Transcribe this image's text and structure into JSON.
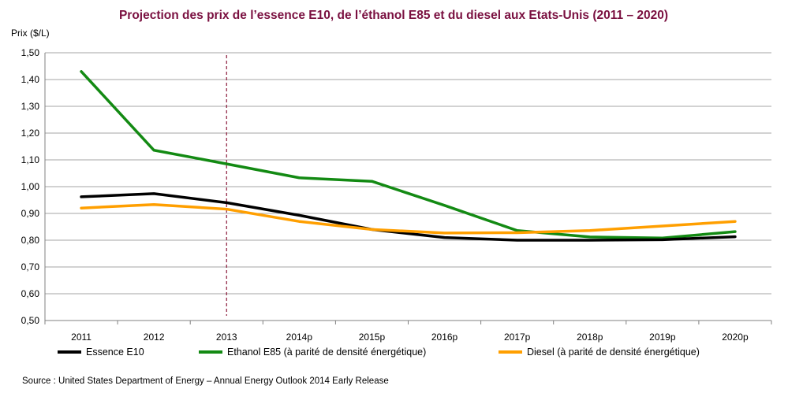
{
  "colors": {
    "title": "#7a1040",
    "grid": "#a6a6a6",
    "marker_line": "#8b1a3a"
  },
  "chart_data": {
    "type": "line",
    "title": "Projection des prix de l’essence E10, de l’éthanol E85 et du diesel aux Etats-Unis (2011 – 2020)",
    "ylabel": "Prix ($/L)",
    "xlabel": "",
    "ylim": [
      0.5,
      1.5
    ],
    "yticks": [
      0.5,
      0.6,
      0.7,
      0.8,
      0.9,
      1.0,
      1.1,
      1.2,
      1.3,
      1.4,
      1.5
    ],
    "ytick_labels": [
      "0,50",
      "0,60",
      "0,70",
      "0,80",
      "0,90",
      "1,00",
      "1,10",
      "1,20",
      "1,30",
      "1,40",
      "1,50"
    ],
    "categories": [
      "2011",
      "2012",
      "2013",
      "2014p",
      "2015p",
      "2016p",
      "2017p",
      "2018p",
      "2019p",
      "2020p"
    ],
    "grid": true,
    "legend_position": "bottom",
    "vertical_marker": {
      "category": "2013",
      "style": "dashed"
    },
    "series": [
      {
        "name": "Essence E10",
        "color": "#000000",
        "values": [
          0.962,
          0.974,
          0.94,
          0.893,
          0.84,
          0.81,
          0.8,
          0.8,
          0.802,
          0.813
        ]
      },
      {
        "name": "Ethanol E85 (à parité de densité énergétique)",
        "color": "#138a13",
        "values": [
          1.43,
          1.136,
          1.085,
          1.033,
          1.02,
          0.93,
          0.836,
          0.812,
          0.808,
          0.832
        ]
      },
      {
        "name": "Diesel (à parité de densité énergétique)",
        "color": "#ff9f00",
        "values": [
          0.92,
          0.933,
          0.916,
          0.87,
          0.84,
          0.827,
          0.828,
          0.836,
          0.853,
          0.87
        ]
      }
    ]
  },
  "source": "Source : United States Department of Energy – Annual Energy Outlook 2014 Early Release"
}
